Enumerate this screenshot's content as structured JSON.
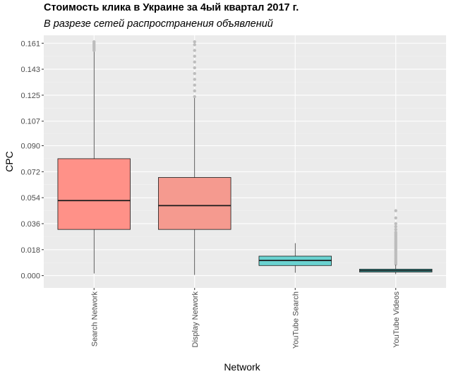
{
  "chart_data": {
    "type": "boxplot",
    "title": "Стоимость клика в Украине за 4ый квартал 2017 г.",
    "subtitle": "В разрезе сетей распространения объявлений",
    "xlabel": "Network",
    "ylabel": "CPC",
    "ylim": [
      -0.0085,
      0.1665
    ],
    "y_ticks": [
      "0.000",
      "0.018",
      "0.036",
      "0.054",
      "0.072",
      "0.090",
      "0.107",
      "0.125",
      "0.143",
      "0.161"
    ],
    "y_tick_values": [
      0.0,
      0.018,
      0.036,
      0.054,
      0.072,
      0.09,
      0.107,
      0.125,
      0.143,
      0.161
    ],
    "grid": true,
    "legend": "none",
    "categories": [
      "Search Network",
      "Display Network",
      "YouTube Search",
      "YouTube Videos"
    ],
    "boxes": [
      {
        "category": "Search Network",
        "min": 0.0015,
        "q1": 0.032,
        "median": 0.052,
        "q3": 0.081,
        "whisker_max": 0.155,
        "outliers": [
          0.156,
          0.157,
          0.158,
          0.159,
          0.16,
          0.161,
          0.162
        ],
        "fill": "#ff9188"
      },
      {
        "category": "Display Network",
        "min": 0.0005,
        "q1": 0.032,
        "median": 0.0485,
        "q3": 0.068,
        "whisker_max": 0.123,
        "outliers": [
          0.124,
          0.128,
          0.132,
          0.136,
          0.14,
          0.144,
          0.148,
          0.152,
          0.156,
          0.16,
          0.162
        ],
        "fill": "#f59a8f"
      },
      {
        "category": "YouTube Search",
        "min": 0.002,
        "q1": 0.007,
        "median": 0.0105,
        "q3": 0.0135,
        "whisker_max": 0.0225,
        "outliers": [],
        "fill": "#6ad2d0"
      },
      {
        "category": "YouTube Videos",
        "min": 0.001,
        "q1": 0.0025,
        "median": 0.0035,
        "q3": 0.0045,
        "whisker_max": 0.0075,
        "outliers": [
          0.008,
          0.009,
          0.01,
          0.011,
          0.012,
          0.013,
          0.014,
          0.015,
          0.016,
          0.017,
          0.018,
          0.019,
          0.02,
          0.021,
          0.022,
          0.023,
          0.024,
          0.025,
          0.026,
          0.027,
          0.028,
          0.029,
          0.03,
          0.032,
          0.034,
          0.036,
          0.04,
          0.045
        ],
        "fill": "#4fc9c9"
      }
    ],
    "colors": {
      "panel": "#ebebeb",
      "grid_major": "#ffffff",
      "grid_minor": "#f2f2f2",
      "outlier": "#bdbdbd",
      "stroke": "#1a1a1a"
    }
  }
}
